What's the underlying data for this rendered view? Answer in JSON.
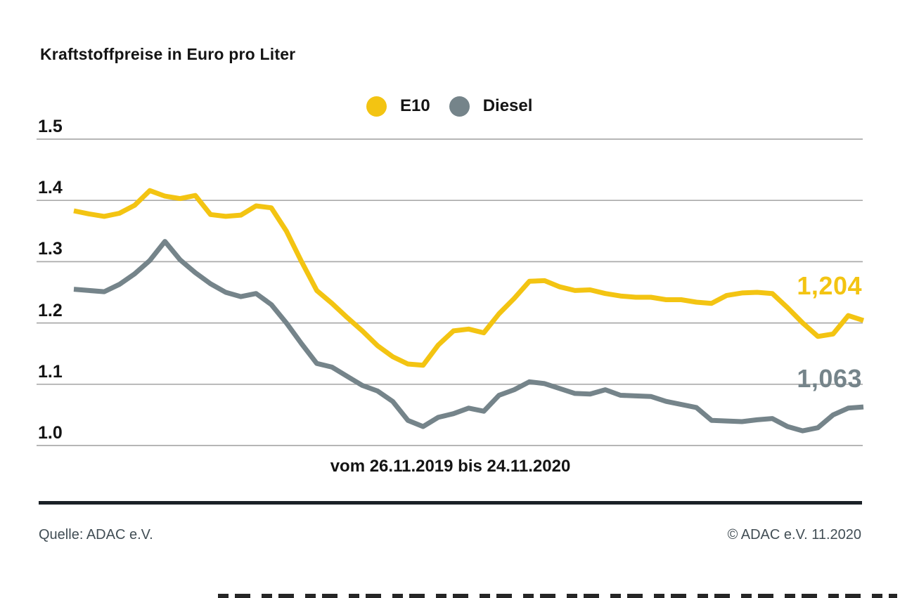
{
  "title": "Kraftstoffpreise in Euro pro Liter",
  "footer": {
    "source": "Quelle: ADAC e.V.",
    "copyright": "© ADAC e.V. 11.2020"
  },
  "chart_data": {
    "type": "line",
    "title": "Kraftstoffpreise in Euro pro Liter",
    "xlabel": "vom 26.11.2019 bis 24.11.2020",
    "ylabel": "Euro pro Liter",
    "x_start_date": "26.11.2019",
    "x_end_date": "24.11.2020",
    "x_interval": "weekly",
    "ylim": [
      1.0,
      1.5
    ],
    "yticks": [
      "1.5",
      "1.4",
      "1.3",
      "1.2",
      "1.1",
      "1.0"
    ],
    "grid": true,
    "gridline_color": "#ababab",
    "legend_position": "top-center",
    "series": [
      {
        "name": "E10",
        "color": "#F3C412",
        "end_label": "1,204",
        "end_value": 1.204,
        "values": [
          1.383,
          1.378,
          1.374,
          1.379,
          1.392,
          1.416,
          1.407,
          1.403,
          1.408,
          1.377,
          1.374,
          1.376,
          1.391,
          1.388,
          1.35,
          1.3,
          1.253,
          1.232,
          1.209,
          1.187,
          1.163,
          1.145,
          1.133,
          1.131,
          1.164,
          1.187,
          1.19,
          1.184,
          1.215,
          1.24,
          1.268,
          1.269,
          1.259,
          1.253,
          1.254,
          1.248,
          1.244,
          1.242,
          1.242,
          1.238,
          1.238,
          1.234,
          1.232,
          1.245,
          1.249,
          1.25,
          1.248,
          1.225,
          1.2,
          1.178,
          1.182,
          1.212,
          1.204
        ]
      },
      {
        "name": "Diesel",
        "color": "#75848A",
        "end_label": "1,063",
        "end_value": 1.063,
        "values": [
          1.255,
          1.253,
          1.251,
          1.263,
          1.28,
          1.302,
          1.333,
          1.303,
          1.282,
          1.264,
          1.25,
          1.243,
          1.248,
          1.23,
          1.2,
          1.166,
          1.134,
          1.128,
          1.113,
          1.098,
          1.089,
          1.072,
          1.041,
          1.031,
          1.046,
          1.052,
          1.061,
          1.056,
          1.082,
          1.091,
          1.104,
          1.101,
          1.093,
          1.085,
          1.084,
          1.091,
          1.082,
          1.081,
          1.08,
          1.072,
          1.067,
          1.062,
          1.041,
          1.04,
          1.039,
          1.042,
          1.044,
          1.031,
          1.024,
          1.029,
          1.05,
          1.061,
          1.063
        ]
      }
    ]
  }
}
